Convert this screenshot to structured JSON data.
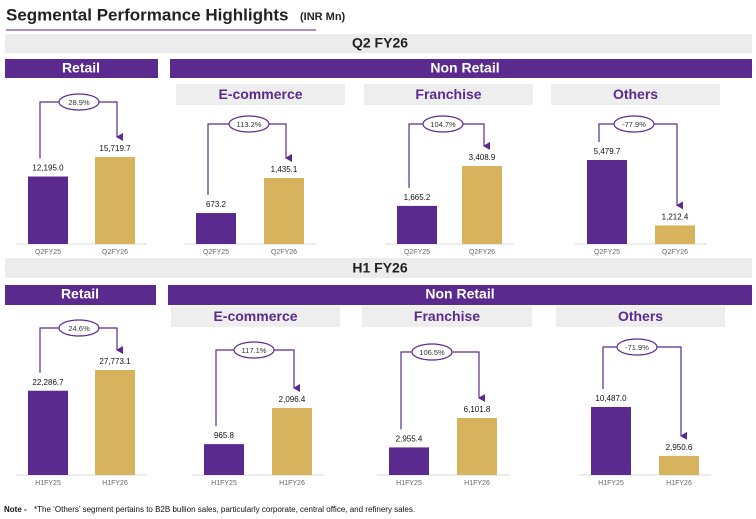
{
  "title": "Segmental Performance Highlights",
  "unit": "(INR Mn)",
  "sections": [
    {
      "heading": "Q2 FY26",
      "banners": [
        "Retail",
        "Non Retail"
      ]
    },
    {
      "heading": "H1 FY26",
      "banners": [
        "Retail",
        "Non Retail"
      ]
    }
  ],
  "note": {
    "label": "Note -",
    "text": "*The ‘Others’ segment pertains to B2B bullion sales, particularly corporate, central office, and refinery sales."
  },
  "chart_data": [
    {
      "type": "bar",
      "categories": [
        "Q2FY25",
        "Q2FY26"
      ],
      "values": [
        12195.0,
        15719.7
      ],
      "value_labels": [
        "12,195.0",
        "15,719.7"
      ],
      "colors": [
        "#5b2a8e",
        "#d6b35c"
      ],
      "annotation": "28.9%"
    },
    {
      "type": "bar",
      "title": "E-commerce",
      "categories": [
        "Q2FY25",
        "Q2FY26"
      ],
      "values": [
        673.2,
        1435.1
      ],
      "value_labels": [
        "673.2",
        "1,435.1"
      ],
      "colors": [
        "#5b2a8e",
        "#d6b35c"
      ],
      "annotation": "113.2%"
    },
    {
      "type": "bar",
      "title": "Franchise",
      "categories": [
        "Q2FY25",
        "Q2FY26"
      ],
      "values": [
        1665.2,
        3408.9
      ],
      "value_labels": [
        "1,665.2",
        "3,408.9"
      ],
      "colors": [
        "#5b2a8e",
        "#d6b35c"
      ],
      "annotation": "104.7%"
    },
    {
      "type": "bar",
      "title": "Others",
      "categories": [
        "Q2FY25",
        "Q2FY26"
      ],
      "values": [
        5479.7,
        1212.4
      ],
      "value_labels": [
        "5,479.7",
        "1,212.4"
      ],
      "colors": [
        "#5b2a8e",
        "#d6b35c"
      ],
      "annotation": "-77.9%"
    },
    {
      "type": "bar",
      "categories": [
        "H1FY25",
        "H1FY26"
      ],
      "values": [
        22286.7,
        27773.1
      ],
      "value_labels": [
        "22,286.7",
        "27,773.1"
      ],
      "colors": [
        "#5b2a8e",
        "#d6b35c"
      ],
      "annotation": "24.6%"
    },
    {
      "type": "bar",
      "title": "E-commerce",
      "categories": [
        "H1FY25",
        "H1FY26"
      ],
      "values": [
        965.8,
        2096.4
      ],
      "value_labels": [
        "965.8",
        "2,096.4"
      ],
      "colors": [
        "#5b2a8e",
        "#d6b35c"
      ],
      "annotation": "117.1%"
    },
    {
      "type": "bar",
      "title": "Franchise",
      "categories": [
        "H1FY25",
        "H1FY26"
      ],
      "values": [
        2955.4,
        6101.8
      ],
      "value_labels": [
        "2,955.4",
        "6,101.8"
      ],
      "colors": [
        "#5b2a8e",
        "#d6b35c"
      ],
      "annotation": "106.5%"
    },
    {
      "type": "bar",
      "title": "Others",
      "categories": [
        "H1FY25",
        "H1FY26"
      ],
      "values": [
        10487.0,
        2950.6
      ],
      "value_labels": [
        "10,487.0",
        "2,950.6"
      ],
      "colors": [
        "#5b2a8e",
        "#d6b35c"
      ],
      "annotation": "-71.9%"
    }
  ]
}
